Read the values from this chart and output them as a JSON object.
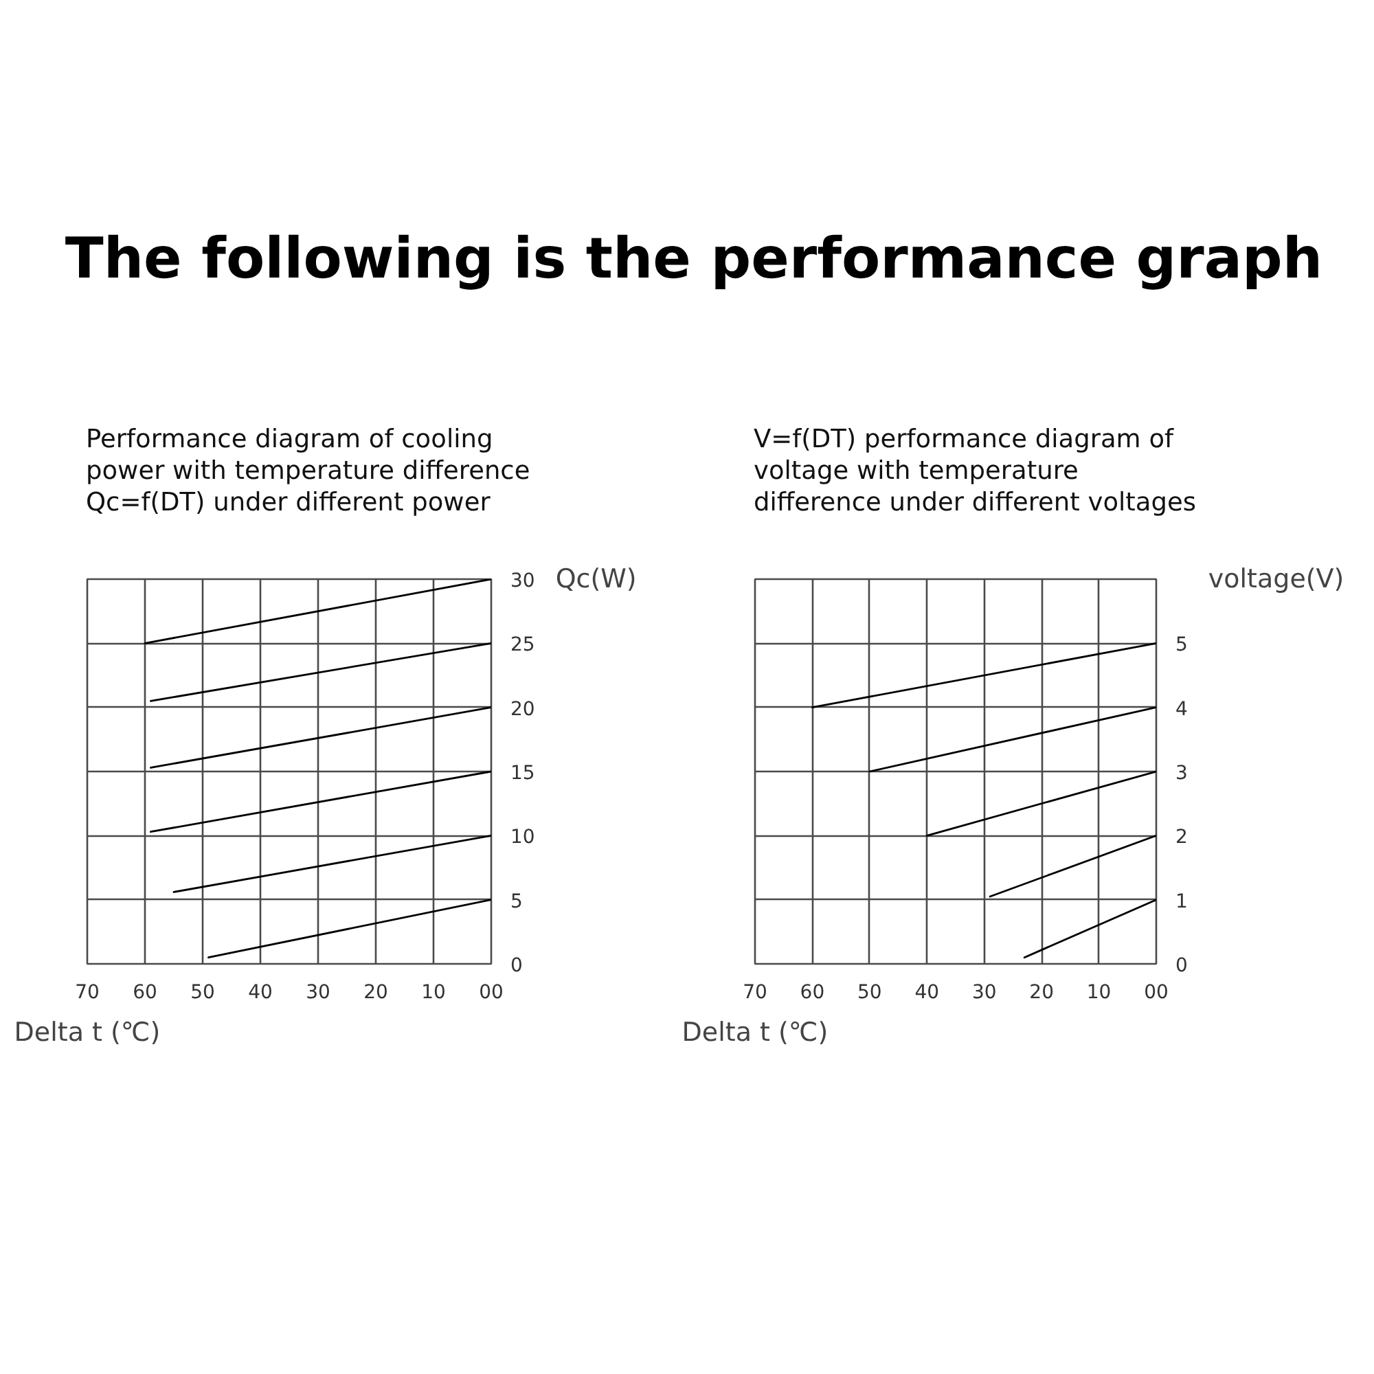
{
  "chart_data": [
    {
      "type": "line",
      "title": "The following is the performance graph",
      "subtitle": "Performance diagram of cooling\npower with temperature difference\nQc=f(DT) under different power",
      "xlabel": "Delta t (℃)",
      "ylabel": "Qc(W)",
      "xlim": [
        70,
        0
      ],
      "ylim": [
        0,
        30
      ],
      "xticks": [
        70,
        60,
        50,
        40,
        30,
        20,
        10,
        {
          "value": 0,
          "label": "00"
        }
      ],
      "yticks": [
        0,
        5,
        10,
        15,
        20,
        25,
        30
      ],
      "grid": true,
      "series": [
        {
          "color": "#000000",
          "x": [
            60,
            0
          ],
          "values": [
            25,
            30
          ]
        },
        {
          "color": "#000000",
          "x": [
            59,
            0
          ],
          "values": [
            20.5,
            25
          ]
        },
        {
          "color": "#000000",
          "x": [
            59,
            0
          ],
          "values": [
            15.3,
            20
          ]
        },
        {
          "color": "#000000",
          "x": [
            59,
            0
          ],
          "values": [
            10.3,
            15
          ]
        },
        {
          "color": "#000000",
          "x": [
            55,
            0
          ],
          "values": [
            5.6,
            10
          ]
        },
        {
          "color": "#000000",
          "x": [
            49,
            0
          ],
          "values": [
            0.5,
            5
          ]
        }
      ]
    },
    {
      "type": "line",
      "subtitle": "V=f(DT) performance diagram of\nvoltage with temperature\ndifference under different voltages",
      "xlabel": "Delta t (℃)",
      "ylabel": "voltage(V)",
      "xlim": [
        70,
        0
      ],
      "ylim": [
        0,
        6
      ],
      "xticks": [
        70,
        60,
        50,
        40,
        30,
        20,
        10,
        {
          "value": 0,
          "label": "00"
        }
      ],
      "yticks": [
        0,
        1,
        2,
        3,
        4,
        5
      ],
      "grid": true,
      "series": [
        {
          "color": "#000000",
          "x": [
            60,
            0
          ],
          "values": [
            4,
            5
          ]
        },
        {
          "color": "#000000",
          "x": [
            50,
            0
          ],
          "values": [
            3,
            4
          ]
        },
        {
          "color": "#000000",
          "x": [
            40,
            0
          ],
          "values": [
            2,
            3
          ]
        },
        {
          "color": "#000000",
          "x": [
            29,
            0
          ],
          "values": [
            1.05,
            2
          ]
        },
        {
          "color": "#000000",
          "x": [
            23,
            0
          ],
          "values": [
            0.1,
            1
          ]
        }
      ]
    }
  ]
}
